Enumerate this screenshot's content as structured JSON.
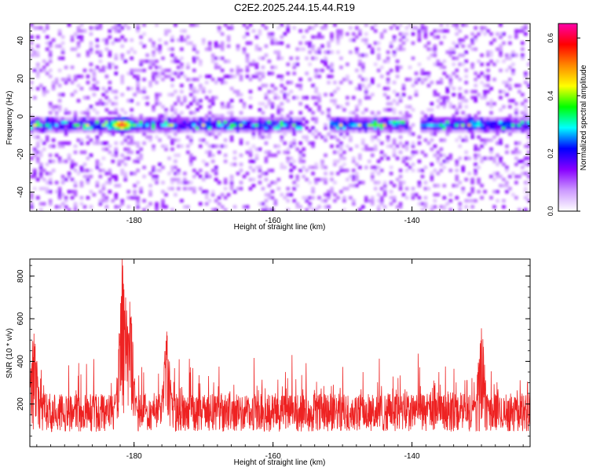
{
  "chart_data": [
    {
      "type": "heatmap",
      "title": "C2E2.2025.244.15.44.R19",
      "xlabel": "Height of straight line (km)",
      "ylabel": "Frequency (Hz)",
      "xlim": [
        -195,
        -123
      ],
      "ylim": [
        -50,
        49
      ],
      "xticks": [
        -180,
        -160,
        -140
      ],
      "xtick_labels": [
        "-180",
        "-160",
        "-140"
      ],
      "yticks": [
        -40,
        -20,
        0,
        20,
        40
      ],
      "ytick_labels": [
        "-40",
        "-20",
        "0",
        "20",
        "40"
      ],
      "colorbar": {
        "label": "Normalized spectral amplitude",
        "range": [
          0.0,
          0.65
        ],
        "ticks": [
          0.0,
          0.2,
          0.4,
          0.6
        ],
        "tick_labels": [
          "0.0",
          "0.2",
          "0.4",
          "0.6"
        ],
        "colors": [
          "#ffffff",
          "#cc99ff",
          "#8800ff",
          "#0000ff",
          "#00ffff",
          "#00ff00",
          "#ffff00",
          "#ff8800",
          "#ff0000",
          "#ff00aa"
        ]
      },
      "band": {
        "center_frequency": -5,
        "half_width": 3,
        "gaps_km": [
          [
            -156,
            -152
          ],
          [
            -141,
            -139
          ]
        ],
        "peak_height_km": -182,
        "peak_amplitude": 0.62
      },
      "noise_range": [
        0.0,
        0.15
      ]
    },
    {
      "type": "line",
      "xlabel": "Height of straight line (km)",
      "ylabel": "SNR (10 * v/v)",
      "xlim": [
        -195,
        -123
      ],
      "ylim": [
        0,
        880
      ],
      "xticks": [
        -180,
        -160,
        -140
      ],
      "xtick_labels": [
        "-180",
        "-160",
        "-140"
      ],
      "yticks": [
        200,
        400,
        600,
        800
      ],
      "ytick_labels": [
        "200",
        "400",
        "600",
        "800"
      ],
      "color": "#ee2222",
      "baseline_mean": 160,
      "baseline_spread": 90,
      "peaks": [
        {
          "x": -194.4,
          "y": 530
        },
        {
          "x": -181.7,
          "y": 880
        },
        {
          "x": -181.2,
          "y": 700
        },
        {
          "x": -180.6,
          "y": 680
        },
        {
          "x": -175.3,
          "y": 540
        },
        {
          "x": -130.0,
          "y": 555
        }
      ]
    }
  ]
}
